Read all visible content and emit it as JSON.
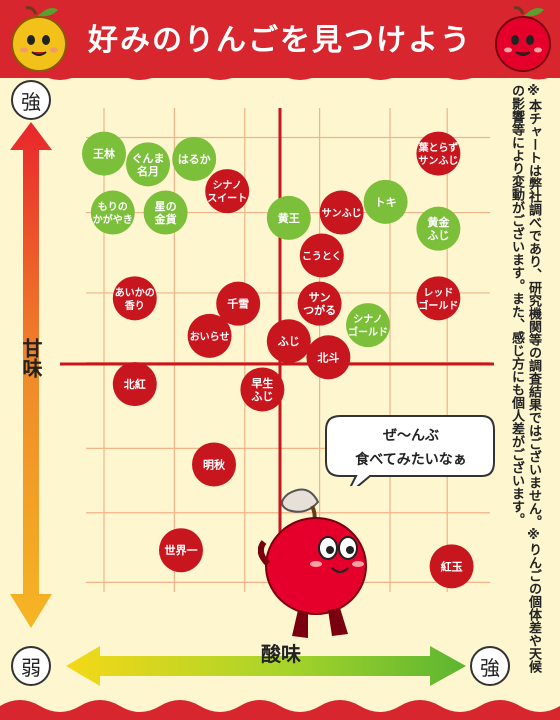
{
  "title": "好みのりんごを見つけよう",
  "axis": {
    "y_high": "強",
    "y_low": "弱",
    "x_high": "強",
    "y_title": "甘味",
    "x_title": "酸味"
  },
  "note": "※本チャートは弊社調べであり、研究機関等の調査結果ではございません。※りんごの個体差や天候の影響等により変動がございます。また、感じ方にも個人差がございます。",
  "bubble_text": [
    "ぜ〜んぶ",
    "食べてみたいなぁ"
  ],
  "colors": {
    "red": "#c8161f",
    "green": "#7cbf3a",
    "background": "#fdf6cf",
    "header": "#d7262e"
  },
  "apples": [
    {
      "name": [
        "王林"
      ],
      "color": "green",
      "sourness": 1.0,
      "sweetness": 9.0
    },
    {
      "name": [
        "ぐんま",
        "名月"
      ],
      "color": "green",
      "sourness": 2.0,
      "sweetness": 8.8
    },
    {
      "name": [
        "はるか"
      ],
      "color": "green",
      "sourness": 3.05,
      "sweetness": 8.9
    },
    {
      "name": [
        "もりの",
        "かがやき"
      ],
      "color": "green",
      "sourness": 1.2,
      "sweetness": 7.9
    },
    {
      "name": [
        "星の",
        "金貨"
      ],
      "color": "green",
      "sourness": 2.4,
      "sweetness": 7.9
    },
    {
      "name": [
        "シナノ",
        "スイート"
      ],
      "color": "red",
      "sourness": 3.8,
      "sweetness": 8.3
    },
    {
      "name": [
        "黄王"
      ],
      "color": "green",
      "sourness": 5.2,
      "sweetness": 7.8
    },
    {
      "name": [
        "サンふじ"
      ],
      "color": "red",
      "sourness": 6.4,
      "sweetness": 7.9
    },
    {
      "name": [
        "トキ"
      ],
      "color": "green",
      "sourness": 7.4,
      "sweetness": 8.1
    },
    {
      "name": [
        "葉とらず",
        "サンふじ"
      ],
      "color": "red",
      "sourness": 8.6,
      "sweetness": 9.0
    },
    {
      "name": [
        "黄金",
        "ふじ"
      ],
      "color": "green",
      "sourness": 8.6,
      "sweetness": 7.6
    },
    {
      "name": [
        "こうとく"
      ],
      "color": "red",
      "sourness": 5.95,
      "sweetness": 7.1
    },
    {
      "name": [
        "あいかの",
        "香り"
      ],
      "color": "red",
      "sourness": 1.7,
      "sweetness": 6.3
    },
    {
      "name": [
        "千雪"
      ],
      "color": "red",
      "sourness": 4.05,
      "sweetness": 6.2
    },
    {
      "name": [
        "サン",
        "つがる"
      ],
      "color": "red",
      "sourness": 5.9,
      "sweetness": 6.2
    },
    {
      "name": [
        "シナノ",
        "ゴールド"
      ],
      "color": "green",
      "sourness": 7.0,
      "sweetness": 5.8
    },
    {
      "name": [
        "レッド",
        "ゴールド"
      ],
      "color": "red",
      "sourness": 8.6,
      "sweetness": 6.3
    },
    {
      "name": [
        "おいらせ"
      ],
      "color": "red",
      "sourness": 3.4,
      "sweetness": 5.6
    },
    {
      "name": [
        "ふじ"
      ],
      "color": "red",
      "sourness": 5.2,
      "sweetness": 5.5
    },
    {
      "name": [
        "北斗"
      ],
      "color": "red",
      "sourness": 6.1,
      "sweetness": 5.2
    },
    {
      "name": [
        "北紅"
      ],
      "color": "red",
      "sourness": 1.7,
      "sweetness": 4.7
    },
    {
      "name": [
        "早生",
        "ふじ"
      ],
      "color": "red",
      "sourness": 4.6,
      "sweetness": 4.6
    },
    {
      "name": [
        "明秋"
      ],
      "color": "red",
      "sourness": 3.5,
      "sweetness": 3.2
    },
    {
      "name": [
        "世界一"
      ],
      "color": "red",
      "sourness": 2.75,
      "sweetness": 1.6
    },
    {
      "name": [
        "紅玉"
      ],
      "color": "red",
      "sourness": 8.9,
      "sweetness": 1.3
    }
  ]
}
